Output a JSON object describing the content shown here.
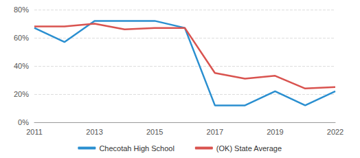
{
  "chart_data": {
    "type": "line",
    "categories": [
      "2011",
      null,
      "2013",
      null,
      "2015",
      null,
      "2017",
      null,
      "2019",
      null,
      "2022"
    ],
    "series": [
      {
        "name": "Checotah High School",
        "color": "#2a8fd0",
        "values": [
          67,
          57,
          72,
          72,
          72,
          67,
          12,
          12,
          22,
          12,
          22
        ]
      },
      {
        "name": "(OK) State Average",
        "color": "#d9534f",
        "values": [
          68,
          68,
          70,
          66,
          67,
          67,
          35,
          31,
          33,
          24,
          25
        ]
      }
    ],
    "ylim": [
      0,
      80
    ],
    "yticks": [
      {
        "value": 0,
        "label": "0%"
      },
      {
        "value": 20,
        "label": "20%"
      },
      {
        "value": 40,
        "label": "40%"
      },
      {
        "value": 60,
        "label": "60%"
      },
      {
        "value": 80,
        "label": "80%"
      }
    ],
    "grid": true,
    "legend": "bottom"
  }
}
